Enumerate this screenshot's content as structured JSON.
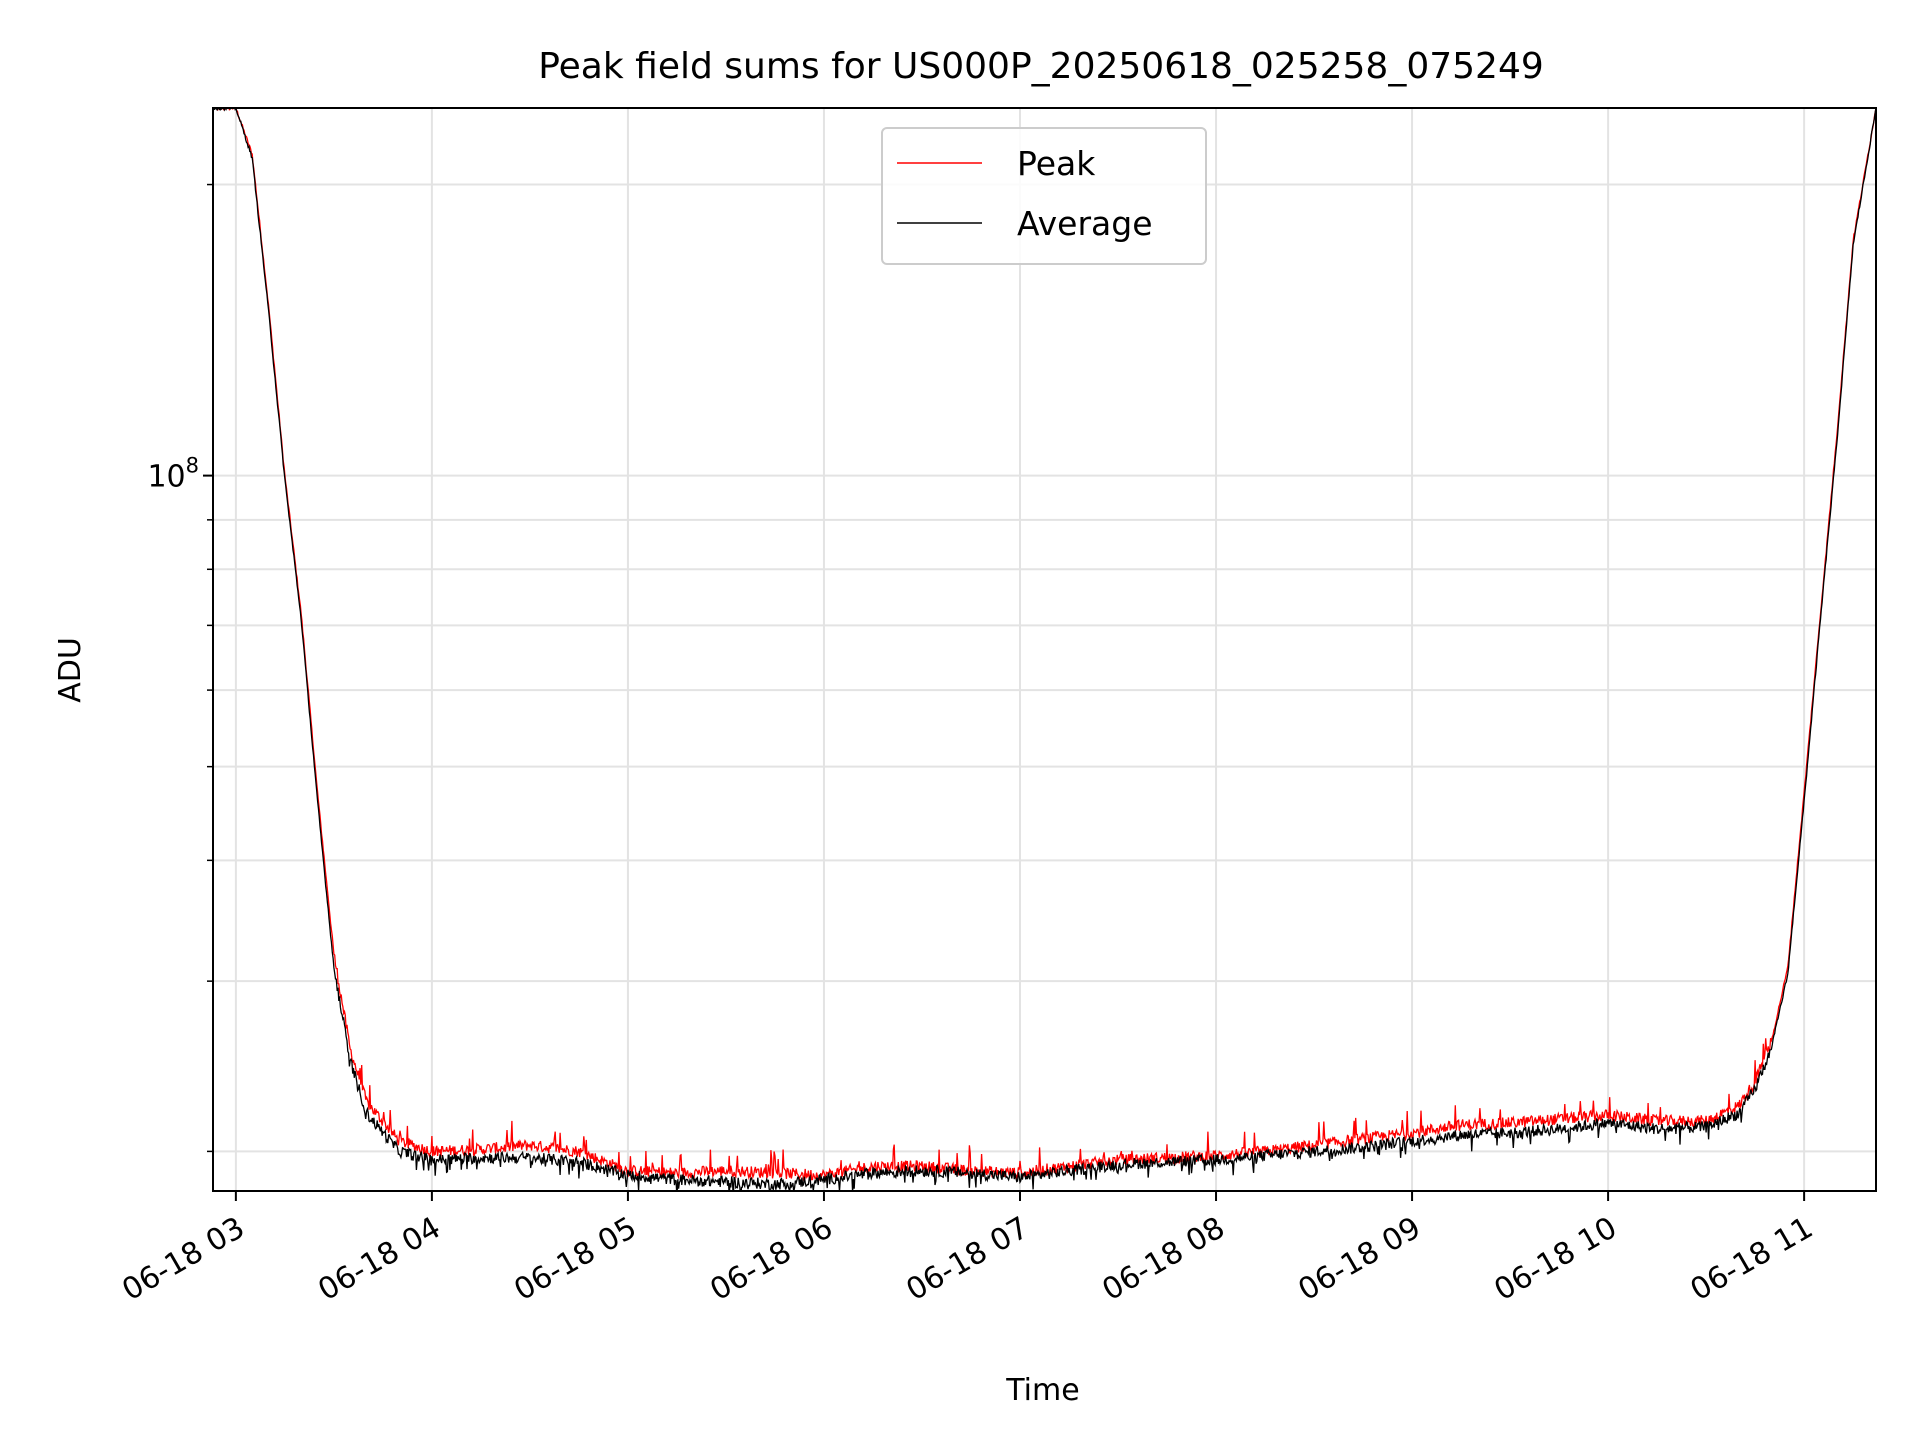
{
  "chart_data": {
    "type": "line",
    "title": "Peak field sums for US000P_20250618_025258_075249",
    "xlabel": "Time",
    "ylabel": "ADU",
    "x_range": [
      "06-18 02:53",
      "06-18 11:22"
    ],
    "y_scale": "log",
    "y_range": [
      18200000,
      240000000
    ],
    "y_ticks": [
      {
        "value": 100000000,
        "label_base": "10",
        "label_exp": "8"
      }
    ],
    "x_ticks": [
      "06-18 03",
      "06-18 04",
      "06-18 05",
      "06-18 06",
      "06-18 07",
      "06-18 08",
      "06-18 09",
      "06-18 10",
      "06-18 11"
    ],
    "grid": true,
    "legend_position": "upper center",
    "series": [
      {
        "name": "Peak",
        "color": "#ff0000",
        "x": [
          "06-18 02:53",
          "06-18 03:00",
          "06-18 03:05",
          "06-18 03:10",
          "06-18 03:15",
          "06-18 03:20",
          "06-18 03:25",
          "06-18 03:30",
          "06-18 03:35",
          "06-18 03:40",
          "06-18 03:50",
          "06-18 04:00",
          "06-18 04:15",
          "06-18 04:30",
          "06-18 04:45",
          "06-18 05:00",
          "06-18 05:15",
          "06-18 05:30",
          "06-18 05:45",
          "06-18 06:00",
          "06-18 06:15",
          "06-18 06:30",
          "06-18 06:45",
          "06-18 07:00",
          "06-18 07:15",
          "06-18 07:30",
          "06-18 07:45",
          "06-18 08:00",
          "06-18 08:15",
          "06-18 08:30",
          "06-18 08:45",
          "06-18 09:00",
          "06-18 09:15",
          "06-18 09:30",
          "06-18 09:45",
          "06-18 10:00",
          "06-18 10:15",
          "06-18 10:30",
          "06-18 10:40",
          "06-18 10:45",
          "06-18 10:50",
          "06-18 10:55",
          "06-18 11:00",
          "06-18 11:05",
          "06-18 11:10",
          "06-18 11:15",
          "06-18 11:22"
        ],
        "y": [
          240000000,
          240000000,
          215000000,
          150000000,
          100000000,
          72000000,
          47000000,
          32000000,
          25500000,
          22500000,
          20500000,
          20000000,
          20100000,
          20300000,
          20000000,
          19100000,
          19000000,
          19100000,
          19000000,
          18900000,
          19300000,
          19300000,
          19100000,
          19000000,
          19300000,
          19600000,
          19700000,
          19800000,
          20000000,
          20300000,
          20600000,
          20900000,
          21300000,
          21400000,
          21600000,
          21800000,
          21500000,
          21500000,
          22300000,
          23600000,
          26000000,
          31000000,
          47000000,
          72000000,
          110000000,
          175000000,
          240000000
        ]
      },
      {
        "name": "Average",
        "color": "#000000",
        "x": [
          "06-18 02:53",
          "06-18 03:00",
          "06-18 03:05",
          "06-18 03:10",
          "06-18 03:15",
          "06-18 03:20",
          "06-18 03:25",
          "06-18 03:30",
          "06-18 03:35",
          "06-18 03:40",
          "06-18 03:50",
          "06-18 04:00",
          "06-18 04:15",
          "06-18 04:30",
          "06-18 04:45",
          "06-18 05:00",
          "06-18 05:15",
          "06-18 05:30",
          "06-18 05:45",
          "06-18 06:00",
          "06-18 06:15",
          "06-18 06:30",
          "06-18 06:45",
          "06-18 07:00",
          "06-18 07:15",
          "06-18 07:30",
          "06-18 07:45",
          "06-18 08:00",
          "06-18 08:15",
          "06-18 08:30",
          "06-18 08:45",
          "06-18 09:00",
          "06-18 09:15",
          "06-18 09:30",
          "06-18 09:45",
          "06-18 10:00",
          "06-18 10:15",
          "06-18 10:30",
          "06-18 10:40",
          "06-18 10:45",
          "06-18 10:50",
          "06-18 10:55",
          "06-18 11:00",
          "06-18 11:05",
          "06-18 11:10",
          "06-18 11:15",
          "06-18 11:22"
        ],
        "y": [
          240000000,
          240000000,
          213000000,
          148000000,
          99000000,
          71000000,
          46000000,
          31000000,
          24800000,
          21900000,
          20000000,
          19600000,
          19700000,
          19700000,
          19500000,
          18900000,
          18700000,
          18600000,
          18500000,
          18700000,
          19000000,
          19100000,
          19000000,
          18800000,
          19100000,
          19400000,
          19500000,
          19600000,
          19800000,
          20000000,
          20200000,
          20500000,
          20800000,
          20900000,
          21100000,
          21400000,
          21100000,
          21200000,
          21900000,
          23200000,
          25600000,
          30500000,
          46000000,
          71000000,
          108000000,
          173000000,
          240000000
        ]
      }
    ]
  }
}
